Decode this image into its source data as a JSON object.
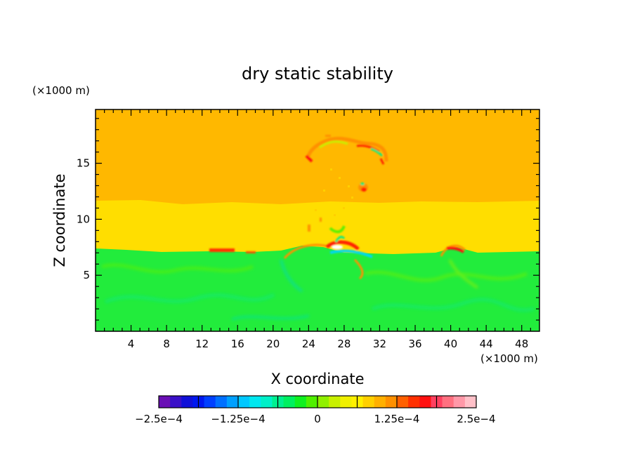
{
  "chart_data": {
    "type": "heatmap",
    "title": "dry static stability",
    "xlabel": "X coordinate",
    "ylabel": "Z coordinate",
    "x_scale_note": "(×1000 m)",
    "y_scale_note": "(×1000 m)",
    "xlim": [
      0,
      50
    ],
    "ylim": [
      0,
      19.8
    ],
    "x_ticks": [
      "4",
      "8",
      "12",
      "16",
      "20",
      "24",
      "28",
      "32",
      "36",
      "40",
      "44",
      "48"
    ],
    "y_ticks": [
      "5",
      "10",
      "15"
    ],
    "colorbar": {
      "range": [
        -0.00025,
        0.00025
      ],
      "tick_labels": [
        "−2.5e−4",
        "−1.25e−4",
        "0",
        "1.25e−4",
        "2.5e−4"
      ],
      "colors": [
        "#6a0fb5",
        "#3a10c8",
        "#1010d8",
        "#0018f0",
        "#0040ff",
        "#0070ff",
        "#00a0ff",
        "#00c8ff",
        "#00e8f0",
        "#00f0c8",
        "#00f090",
        "#00f060",
        "#10f020",
        "#50f000",
        "#90f000",
        "#c8f000",
        "#f0f000",
        "#fff000",
        "#ffd000",
        "#ffb000",
        "#ff9000",
        "#ff6000",
        "#ff3000",
        "#ff1010",
        "#ff4060",
        "#ff7080",
        "#ff98a8",
        "#ffc0c8"
      ]
    },
    "layers": [
      {
        "z_range": [
          0,
          7.2
        ],
        "approx_value": 2e-05,
        "color": "#22ec3c"
      },
      {
        "z_range": [
          7.2,
          11.6
        ],
        "approx_value": 0.00017,
        "color": "#ffde00"
      },
      {
        "z_range": [
          11.6,
          19.8
        ],
        "approx_value": 0.0002,
        "color": "#ffb800"
      }
    ],
    "grid": false
  }
}
